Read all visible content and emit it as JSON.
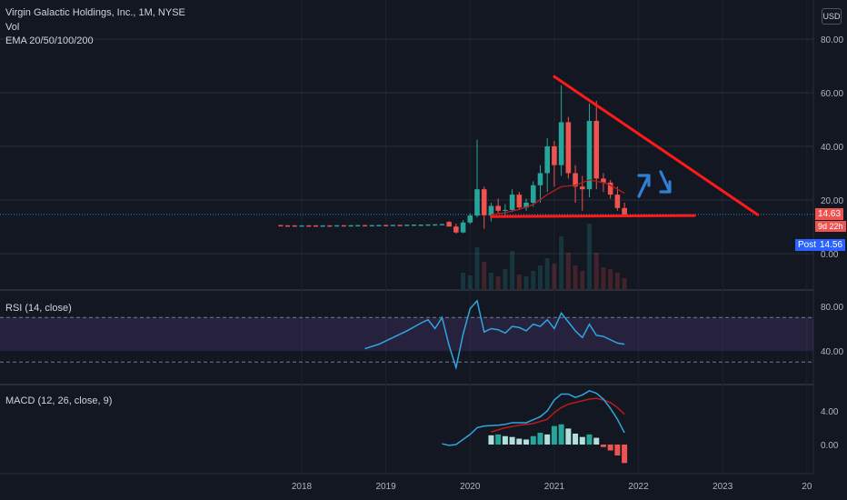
{
  "header": {
    "symbol_line": "Virgin Galactic Holdings, Inc., 1M, NYSE",
    "vol_label": "Vol",
    "ema_label": "EMA 20/50/100/200",
    "currency": "USD"
  },
  "price_badges": {
    "last_price": "14.63",
    "countdown": "9d 22h",
    "post_label": "Post",
    "post_price": "14.56"
  },
  "colors": {
    "background": "#131722",
    "up": "#26a69a",
    "down": "#ef5350",
    "ema": "#b71c1c",
    "trendline": "#ff1a1a",
    "annotation_arrow": "#2f7fd6",
    "rsi_line": "#2fa6e0",
    "rsi_band": "#7e57c2",
    "macd_line": "#2fa6e0",
    "signal_line": "#b71c1c"
  },
  "chart_data": [
    {
      "type": "candlestick",
      "y_ticks": [
        "80.00",
        "60.00",
        "40.00",
        "20.00",
        "0.00"
      ],
      "ylim": [
        0,
        85
      ],
      "x_ticks": [
        "2018",
        "2019",
        "2020",
        "2021",
        "2022",
        "2023",
        "20"
      ],
      "grid": true,
      "candles": [
        {
          "t": "2019-10",
          "o": 11.8,
          "h": 12.2,
          "l": 10.0,
          "c": 10.1
        },
        {
          "t": "2019-11",
          "o": 10.1,
          "h": 11.2,
          "l": 7.5,
          "c": 7.9
        },
        {
          "t": "2019-12",
          "o": 7.9,
          "h": 12.5,
          "l": 7.6,
          "c": 11.6
        },
        {
          "t": "2020-01",
          "o": 11.6,
          "h": 15.0,
          "l": 11.0,
          "c": 14.2
        },
        {
          "t": "2020-02",
          "o": 14.2,
          "h": 42.5,
          "l": 13.5,
          "c": 24.0
        },
        {
          "t": "2020-03",
          "o": 24.0,
          "h": 25.0,
          "l": 9.3,
          "c": 14.3
        },
        {
          "t": "2020-04",
          "o": 14.3,
          "h": 19.0,
          "l": 12.0,
          "c": 17.8
        },
        {
          "t": "2020-05",
          "o": 17.8,
          "h": 20.5,
          "l": 15.0,
          "c": 16.0
        },
        {
          "t": "2020-06",
          "o": 16.0,
          "h": 18.5,
          "l": 13.8,
          "c": 16.3
        },
        {
          "t": "2020-07",
          "o": 16.3,
          "h": 24.0,
          "l": 15.5,
          "c": 22.0
        },
        {
          "t": "2020-08",
          "o": 22.0,
          "h": 23.0,
          "l": 16.5,
          "c": 17.2
        },
        {
          "t": "2020-09",
          "o": 17.2,
          "h": 20.5,
          "l": 16.0,
          "c": 19.0
        },
        {
          "t": "2020-10",
          "o": 19.0,
          "h": 27.0,
          "l": 17.5,
          "c": 25.5
        },
        {
          "t": "2020-11",
          "o": 25.5,
          "h": 33.0,
          "l": 19.0,
          "c": 30.0
        },
        {
          "t": "2020-12",
          "o": 30.0,
          "h": 43.0,
          "l": 23.0,
          "c": 40.0
        },
        {
          "t": "2021-01",
          "o": 40.0,
          "h": 42.0,
          "l": 25.0,
          "c": 33.0
        },
        {
          "t": "2021-02",
          "o": 33.0,
          "h": 62.8,
          "l": 29.0,
          "c": 49.0
        },
        {
          "t": "2021-03",
          "o": 49.0,
          "h": 51.0,
          "l": 28.0,
          "c": 30.0
        },
        {
          "t": "2021-04",
          "o": 30.0,
          "h": 33.0,
          "l": 19.0,
          "c": 25.0
        },
        {
          "t": "2021-05",
          "o": 25.0,
          "h": 29.0,
          "l": 16.0,
          "c": 24.0
        },
        {
          "t": "2021-06",
          "o": 24.0,
          "h": 56.0,
          "l": 21.0,
          "c": 49.5
        },
        {
          "t": "2021-07",
          "o": 49.5,
          "h": 57.0,
          "l": 24.0,
          "c": 28.0
        },
        {
          "t": "2021-08",
          "o": 28.0,
          "h": 30.0,
          "l": 23.0,
          "c": 26.5
        },
        {
          "t": "2021-09",
          "o": 26.5,
          "h": 27.5,
          "l": 20.5,
          "c": 22.0
        },
        {
          "t": "2021-10",
          "o": 22.0,
          "h": 25.0,
          "l": 16.0,
          "c": 17.0
        },
        {
          "t": "2021-11",
          "o": 17.0,
          "h": 19.0,
          "l": 14.0,
          "c": 14.63
        }
      ],
      "pre_candle_ticks": [
        {
          "t": "2017-10",
          "v": 10.4,
          "dir": "down"
        },
        {
          "t": "2017-11",
          "v": 10.3,
          "dir": "down"
        },
        {
          "t": "2017-12",
          "v": 10.3,
          "dir": "down"
        },
        {
          "t": "2018-01",
          "v": 10.3,
          "dir": "up"
        },
        {
          "t": "2018-02",
          "v": 10.3,
          "dir": "down"
        },
        {
          "t": "2018-03",
          "v": 10.3,
          "dir": "down"
        },
        {
          "t": "2018-04",
          "v": 10.3,
          "dir": "up"
        },
        {
          "t": "2018-05",
          "v": 10.3,
          "dir": "down"
        },
        {
          "t": "2018-06",
          "v": 10.35,
          "dir": "up"
        },
        {
          "t": "2018-07",
          "v": 10.35,
          "dir": "down"
        },
        {
          "t": "2018-08",
          "v": 10.35,
          "dir": "up"
        },
        {
          "t": "2018-09",
          "v": 10.4,
          "dir": "up"
        },
        {
          "t": "2018-10",
          "v": 10.4,
          "dir": "down"
        },
        {
          "t": "2018-11",
          "v": 10.4,
          "dir": "up"
        },
        {
          "t": "2018-12",
          "v": 10.45,
          "dir": "up"
        },
        {
          "t": "2019-01",
          "v": 10.45,
          "dir": "down"
        },
        {
          "t": "2019-02",
          "v": 10.5,
          "dir": "up"
        },
        {
          "t": "2019-03",
          "v": 10.5,
          "dir": "down"
        },
        {
          "t": "2019-04",
          "v": 10.55,
          "dir": "up"
        },
        {
          "t": "2019-05",
          "v": 10.6,
          "dir": "up"
        },
        {
          "t": "2019-06",
          "v": 10.6,
          "dir": "up"
        },
        {
          "t": "2019-07",
          "v": 10.65,
          "dir": "up"
        },
        {
          "t": "2019-08",
          "v": 10.7,
          "dir": "up"
        },
        {
          "t": "2019-09",
          "v": 10.8,
          "dir": "up"
        }
      ],
      "volume": [
        {
          "t": "2019-12",
          "v": 18,
          "dir": "up"
        },
        {
          "t": "2020-01",
          "v": 15,
          "dir": "up"
        },
        {
          "t": "2020-02",
          "v": 46,
          "dir": "up"
        },
        {
          "t": "2020-03",
          "v": 30,
          "dir": "down"
        },
        {
          "t": "2020-04",
          "v": 18,
          "dir": "up"
        },
        {
          "t": "2020-05",
          "v": 14,
          "dir": "down"
        },
        {
          "t": "2020-06",
          "v": 22,
          "dir": "up"
        },
        {
          "t": "2020-07",
          "v": 42,
          "dir": "up"
        },
        {
          "t": "2020-08",
          "v": 16,
          "dir": "down"
        },
        {
          "t": "2020-09",
          "v": 14,
          "dir": "up"
        },
        {
          "t": "2020-10",
          "v": 20,
          "dir": "up"
        },
        {
          "t": "2020-11",
          "v": 26,
          "dir": "up"
        },
        {
          "t": "2020-12",
          "v": 34,
          "dir": "up"
        },
        {
          "t": "2021-01",
          "v": 28,
          "dir": "down"
        },
        {
          "t": "2021-02",
          "v": 58,
          "dir": "up"
        },
        {
          "t": "2021-03",
          "v": 40,
          "dir": "down"
        },
        {
          "t": "2021-04",
          "v": 26,
          "dir": "down"
        },
        {
          "t": "2021-05",
          "v": 20,
          "dir": "down"
        },
        {
          "t": "2021-06",
          "v": 72,
          "dir": "up"
        },
        {
          "t": "2021-07",
          "v": 40,
          "dir": "down"
        },
        {
          "t": "2021-08",
          "v": 24,
          "dir": "down"
        },
        {
          "t": "2021-09",
          "v": 22,
          "dir": "down"
        },
        {
          "t": "2021-10",
          "v": 18,
          "dir": "down"
        },
        {
          "t": "2021-11",
          "v": 12,
          "dir": "down"
        }
      ],
      "ema": [
        {
          "t": "2020-04",
          "v": 14.5
        },
        {
          "t": "2020-06",
          "v": 15.3
        },
        {
          "t": "2020-08",
          "v": 16.5
        },
        {
          "t": "2020-10",
          "v": 18.3
        },
        {
          "t": "2020-12",
          "v": 22.0
        },
        {
          "t": "2021-02",
          "v": 25.0
        },
        {
          "t": "2021-04",
          "v": 25.5
        },
        {
          "t": "2021-06",
          "v": 27.5
        },
        {
          "t": "2021-08",
          "v": 26.5
        },
        {
          "t": "2021-09",
          "v": 25.5
        },
        {
          "t": "2021-10",
          "v": 24.0
        },
        {
          "t": "2021-11",
          "v": 22.5
        }
      ],
      "drawings": {
        "upper_trendline": [
          {
            "t": "2021-01",
            "v": 66
          },
          {
            "t": "2023-06",
            "v": 14.5
          }
        ],
        "support_line": [
          {
            "t": "2020-04",
            "v": 13.8
          },
          {
            "t": "2022-09",
            "v": 14.2
          }
        ],
        "arrows": [
          "up",
          "down"
        ]
      }
    },
    {
      "type": "line",
      "title": "RSI (14, close)",
      "y_ticks": [
        "80.00",
        "40.00"
      ],
      "ylim": [
        20,
        90
      ],
      "band": [
        40,
        70
      ],
      "series": [
        {
          "values": [
            {
              "t": "2018-10",
              "v": 42
            },
            {
              "t": "2018-12",
              "v": 46
            },
            {
              "t": "2019-02",
              "v": 52
            },
            {
              "t": "2019-04",
              "v": 58
            },
            {
              "t": "2019-06",
              "v": 65
            },
            {
              "t": "2019-07",
              "v": 68
            },
            {
              "t": "2019-08",
              "v": 60
            },
            {
              "t": "2019-09",
              "v": 70
            },
            {
              "t": "2019-10",
              "v": 45
            },
            {
              "t": "2019-11",
              "v": 25
            },
            {
              "t": "2019-12",
              "v": 55
            },
            {
              "t": "2020-01",
              "v": 78
            },
            {
              "t": "2020-02",
              "v": 85
            },
            {
              "t": "2020-03",
              "v": 57
            },
            {
              "t": "2020-04",
              "v": 60
            },
            {
              "t": "2020-05",
              "v": 59
            },
            {
              "t": "2020-06",
              "v": 56
            },
            {
              "t": "2020-07",
              "v": 62
            },
            {
              "t": "2020-08",
              "v": 61
            },
            {
              "t": "2020-09",
              "v": 58
            },
            {
              "t": "2020-10",
              "v": 64
            },
            {
              "t": "2020-11",
              "v": 62
            },
            {
              "t": "2020-12",
              "v": 68
            },
            {
              "t": "2021-01",
              "v": 60
            },
            {
              "t": "2021-02",
              "v": 74
            },
            {
              "t": "2021-03",
              "v": 66
            },
            {
              "t": "2021-04",
              "v": 58
            },
            {
              "t": "2021-05",
              "v": 52
            },
            {
              "t": "2021-06",
              "v": 64
            },
            {
              "t": "2021-07",
              "v": 54
            },
            {
              "t": "2021-08",
              "v": 53
            },
            {
              "t": "2021-09",
              "v": 50
            },
            {
              "t": "2021-10",
              "v": 47
            },
            {
              "t": "2021-11",
              "v": 46
            }
          ]
        }
      ]
    },
    {
      "type": "line",
      "title": "MACD (12, 26, close, 9)",
      "y_ticks": [
        "4.00",
        "0.00"
      ],
      "ylim": [
        -2.3,
        7.2
      ],
      "series": [
        {
          "values": [
            {
              "t": "2019-09",
              "v": 0.1
            },
            {
              "t": "2019-10",
              "v": -0.1
            },
            {
              "t": "2019-11",
              "v": 0.0
            },
            {
              "t": "2019-12",
              "v": 0.6
            },
            {
              "t": "2020-01",
              "v": 1.2
            },
            {
              "t": "2020-02",
              "v": 2.0
            },
            {
              "t": "2020-03",
              "v": 2.2
            },
            {
              "t": "2020-05",
              "v": 2.3
            },
            {
              "t": "2020-06",
              "v": 2.4
            },
            {
              "t": "2020-07",
              "v": 2.6
            },
            {
              "t": "2020-09",
              "v": 2.6
            },
            {
              "t": "2020-11",
              "v": 3.3
            },
            {
              "t": "2020-12",
              "v": 4.0
            },
            {
              "t": "2021-01",
              "v": 5.3
            },
            {
              "t": "2021-02",
              "v": 6.0
            },
            {
              "t": "2021-03",
              "v": 6.0
            },
            {
              "t": "2021-04",
              "v": 5.6
            },
            {
              "t": "2021-05",
              "v": 5.9
            },
            {
              "t": "2021-06",
              "v": 6.4
            },
            {
              "t": "2021-07",
              "v": 6.1
            },
            {
              "t": "2021-08",
              "v": 5.4
            },
            {
              "t": "2021-09",
              "v": 4.3
            },
            {
              "t": "2021-10",
              "v": 3.0
            },
            {
              "t": "2021-11",
              "v": 1.4
            }
          ]
        },
        {
          "values": [
            {
              "t": "2020-04",
              "v": 1.5
            },
            {
              "t": "2020-06",
              "v": 2.0
            },
            {
              "t": "2020-08",
              "v": 2.3
            },
            {
              "t": "2020-10",
              "v": 2.5
            },
            {
              "t": "2020-12",
              "v": 3.0
            },
            {
              "t": "2021-01",
              "v": 3.8
            },
            {
              "t": "2021-02",
              "v": 4.4
            },
            {
              "t": "2021-03",
              "v": 4.8
            },
            {
              "t": "2021-04",
              "v": 5.0
            },
            {
              "t": "2021-05",
              "v": 5.2
            },
            {
              "t": "2021-06",
              "v": 5.4
            },
            {
              "t": "2021-07",
              "v": 5.5
            },
            {
              "t": "2021-08",
              "v": 5.3
            },
            {
              "t": "2021-09",
              "v": 5.0
            },
            {
              "t": "2021-10",
              "v": 4.4
            },
            {
              "t": "2021-11",
              "v": 3.6
            }
          ]
        }
      ],
      "histogram": [
        {
          "t": "2020-04",
          "v": 1.1,
          "c": "#b2dfdb"
        },
        {
          "t": "2020-05",
          "v": 1.2,
          "c": "#26a69a"
        },
        {
          "t": "2020-06",
          "v": 1.0,
          "c": "#b2dfdb"
        },
        {
          "t": "2020-07",
          "v": 0.9,
          "c": "#b2dfdb"
        },
        {
          "t": "2020-08",
          "v": 0.7,
          "c": "#b2dfdb"
        },
        {
          "t": "2020-09",
          "v": 0.6,
          "c": "#b2dfdb"
        },
        {
          "t": "2020-10",
          "v": 1.0,
          "c": "#26a69a"
        },
        {
          "t": "2020-11",
          "v": 1.4,
          "c": "#26a69a"
        },
        {
          "t": "2020-12",
          "v": 1.2,
          "c": "#b2dfdb"
        },
        {
          "t": "2021-01",
          "v": 2.2,
          "c": "#26a69a"
        },
        {
          "t": "2021-02",
          "v": 2.4,
          "c": "#26a69a"
        },
        {
          "t": "2021-03",
          "v": 1.9,
          "c": "#b2dfdb"
        },
        {
          "t": "2021-04",
          "v": 1.3,
          "c": "#b2dfdb"
        },
        {
          "t": "2021-05",
          "v": 0.9,
          "c": "#b2dfdb"
        },
        {
          "t": "2021-06",
          "v": 1.2,
          "c": "#26a69a"
        },
        {
          "t": "2021-07",
          "v": 0.8,
          "c": "#b2dfdb"
        },
        {
          "t": "2021-08",
          "v": -0.3,
          "c": "#ef5350"
        },
        {
          "t": "2021-09",
          "v": -0.7,
          "c": "#ef5350"
        },
        {
          "t": "2021-10",
          "v": -1.3,
          "c": "#ef5350"
        },
        {
          "t": "2021-11",
          "v": -2.2,
          "c": "#ef5350"
        }
      ]
    }
  ]
}
